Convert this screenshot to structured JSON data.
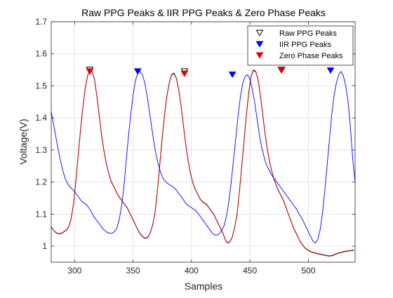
{
  "figure": {
    "background": "#ffffff"
  },
  "chart_data": {
    "type": "line",
    "title": "Raw PPG Peaks & IIR PPG Peaks & Zero Phase Peaks",
    "xlabel": "Samples",
    "ylabel": "Voltage(V)",
    "xlim": [
      280,
      540
    ],
    "ylim": [
      0.95,
      1.7
    ],
    "xticks": [
      300,
      350,
      400,
      450,
      500
    ],
    "yticks": [
      1,
      1.1,
      1.2,
      1.3,
      1.4,
      1.5,
      1.6,
      1.7
    ],
    "xtick_labels": [
      "300",
      "350",
      "400",
      "450",
      "500"
    ],
    "ytick_labels": [
      "1",
      "1.1",
      "1.2",
      "1.3",
      "1.4",
      "1.5",
      "1.6",
      "1.7"
    ],
    "grid": true,
    "legend_position": "top-right",
    "series": [
      {
        "name": "Raw PPG",
        "role": "line",
        "color": "#000000",
        "x": [
          280,
          281,
          283,
          285,
          287,
          289,
          291,
          293,
          295,
          297,
          299,
          301,
          303,
          305,
          307,
          309,
          311,
          313,
          315,
          317,
          319,
          321,
          323,
          325,
          327,
          329,
          331,
          333,
          335,
          337,
          339,
          341,
          343,
          345,
          347,
          349,
          351,
          353,
          355,
          357,
          359,
          361,
          363,
          365,
          367,
          369,
          371,
          373,
          375,
          377,
          379,
          381,
          383,
          385,
          387,
          389,
          391,
          393,
          395,
          397,
          399,
          401,
          403,
          405,
          407,
          409,
          411,
          413,
          415,
          417,
          419,
          421,
          423,
          425,
          427,
          429,
          431,
          433,
          435,
          437,
          439,
          441,
          443,
          445,
          447,
          449,
          451,
          453,
          455,
          457,
          459,
          461,
          463,
          465,
          467,
          469,
          471,
          473,
          475,
          477,
          479,
          481,
          483,
          485,
          487,
          489,
          491,
          493,
          495,
          497,
          499,
          501,
          503,
          505,
          507,
          509,
          511,
          513,
          515,
          517,
          519,
          521,
          523,
          525,
          527,
          529,
          531,
          533,
          535,
          537,
          539
        ],
        "values": [
          1.062,
          1.055,
          1.045,
          1.04,
          1.038,
          1.04,
          1.045,
          1.05,
          1.06,
          1.085,
          1.13,
          1.2,
          1.28,
          1.36,
          1.43,
          1.49,
          1.53,
          1.55,
          1.545,
          1.52,
          1.47,
          1.41,
          1.35,
          1.3,
          1.26,
          1.23,
          1.205,
          1.19,
          1.175,
          1.16,
          1.15,
          1.14,
          1.13,
          1.12,
          1.105,
          1.09,
          1.075,
          1.06,
          1.045,
          1.035,
          1.028,
          1.025,
          1.03,
          1.045,
          1.07,
          1.11,
          1.18,
          1.26,
          1.34,
          1.41,
          1.47,
          1.51,
          1.535,
          1.54,
          1.525,
          1.49,
          1.44,
          1.38,
          1.32,
          1.27,
          1.23,
          1.2,
          1.18,
          1.165,
          1.15,
          1.14,
          1.135,
          1.13,
          1.12,
          1.11,
          1.1,
          1.085,
          1.07,
          1.055,
          1.04,
          1.02,
          1.01,
          1.015,
          1.03,
          1.06,
          1.1,
          1.17,
          1.25,
          1.33,
          1.41,
          1.48,
          1.53,
          1.55,
          1.545,
          1.52,
          1.47,
          1.41,
          1.35,
          1.3,
          1.26,
          1.23,
          1.205,
          1.185,
          1.17,
          1.155,
          1.14,
          1.12,
          1.1,
          1.08,
          1.06,
          1.045,
          1.03,
          1.015,
          1.005,
          0.995,
          0.99,
          0.985,
          0.982,
          0.98,
          0.978,
          0.976,
          0.975,
          0.973,
          0.972,
          0.97,
          0.97,
          0.972,
          0.975,
          0.978,
          0.98,
          0.982,
          0.984,
          0.985,
          0.986,
          0.987,
          0.988
        ]
      },
      {
        "name": "Zero Phase",
        "role": "line",
        "color": "#cc0000",
        "x": [
          280,
          281,
          283,
          285,
          287,
          289,
          291,
          293,
          295,
          297,
          299,
          301,
          303,
          305,
          307,
          309,
          311,
          313,
          315,
          317,
          319,
          321,
          323,
          325,
          327,
          329,
          331,
          333,
          335,
          337,
          339,
          341,
          343,
          345,
          347,
          349,
          351,
          353,
          355,
          357,
          359,
          361,
          363,
          365,
          367,
          369,
          371,
          373,
          375,
          377,
          379,
          381,
          383,
          385,
          387,
          389,
          391,
          393,
          395,
          397,
          399,
          401,
          403,
          405,
          407,
          409,
          411,
          413,
          415,
          417,
          419,
          421,
          423,
          425,
          427,
          429,
          431,
          433,
          435,
          437,
          439,
          441,
          443,
          445,
          447,
          449,
          451,
          453,
          455,
          457,
          459,
          461,
          463,
          465,
          467,
          469,
          471,
          473,
          475,
          477,
          479,
          481,
          483,
          485,
          487,
          489,
          491,
          493,
          495,
          497,
          499,
          501,
          503,
          505,
          507,
          509,
          511,
          513,
          515,
          517,
          519,
          521,
          523,
          525,
          527,
          529,
          531,
          533,
          535,
          537,
          539
        ],
        "values": [
          1.061,
          1.054,
          1.046,
          1.041,
          1.039,
          1.041,
          1.046,
          1.051,
          1.061,
          1.086,
          1.131,
          1.201,
          1.281,
          1.361,
          1.431,
          1.491,
          1.531,
          1.548,
          1.544,
          1.519,
          1.469,
          1.409,
          1.349,
          1.299,
          1.259,
          1.229,
          1.204,
          1.189,
          1.174,
          1.159,
          1.149,
          1.139,
          1.129,
          1.119,
          1.104,
          1.089,
          1.074,
          1.059,
          1.044,
          1.034,
          1.027,
          1.024,
          1.029,
          1.044,
          1.069,
          1.109,
          1.179,
          1.259,
          1.339,
          1.409,
          1.469,
          1.509,
          1.534,
          1.538,
          1.524,
          1.489,
          1.439,
          1.379,
          1.319,
          1.269,
          1.229,
          1.199,
          1.179,
          1.164,
          1.149,
          1.139,
          1.134,
          1.129,
          1.119,
          1.109,
          1.099,
          1.084,
          1.069,
          1.054,
          1.039,
          1.019,
          1.009,
          1.014,
          1.029,
          1.059,
          1.099,
          1.169,
          1.249,
          1.329,
          1.409,
          1.479,
          1.529,
          1.548,
          1.544,
          1.519,
          1.469,
          1.409,
          1.349,
          1.299,
          1.259,
          1.229,
          1.204,
          1.184,
          1.169,
          1.154,
          1.139,
          1.119,
          1.099,
          1.079,
          1.059,
          1.044,
          1.029,
          1.014,
          1.004,
          0.994,
          0.989,
          0.984,
          0.981,
          0.979,
          0.977,
          0.975,
          0.974,
          0.972,
          0.971,
          0.969,
          0.969,
          0.971,
          0.974,
          0.977,
          0.979,
          0.981,
          0.983,
          0.984,
          0.985,
          0.986,
          0.987
        ]
      },
      {
        "name": "IIR PPG",
        "role": "line",
        "color": "#0000ff",
        "x": [
          280,
          282,
          284,
          286,
          288,
          290,
          292,
          294,
          296,
          298,
          300,
          302,
          304,
          306,
          308,
          310,
          312,
          314,
          316,
          318,
          320,
          322,
          324,
          326,
          328,
          330,
          332,
          334,
          336,
          338,
          340,
          342,
          344,
          346,
          348,
          350,
          352,
          354,
          356,
          358,
          360,
          362,
          364,
          366,
          368,
          370,
          372,
          374,
          376,
          378,
          380,
          382,
          384,
          386,
          388,
          390,
          392,
          394,
          396,
          398,
          400,
          402,
          404,
          406,
          408,
          410,
          412,
          414,
          416,
          418,
          420,
          422,
          424,
          426,
          428,
          430,
          432,
          434,
          436,
          438,
          440,
          442,
          444,
          446,
          448,
          450,
          452,
          454,
          456,
          458,
          460,
          462,
          464,
          466,
          468,
          470,
          472,
          474,
          476,
          478,
          480,
          482,
          484,
          486,
          488,
          490,
          492,
          494,
          496,
          498,
          500,
          502,
          504,
          506,
          508,
          510,
          512,
          514,
          516,
          518,
          520,
          522,
          524,
          526,
          528,
          530,
          532,
          534,
          536,
          538,
          540
        ],
        "values": [
          1.42,
          1.38,
          1.34,
          1.3,
          1.265,
          1.235,
          1.21,
          1.195,
          1.185,
          1.178,
          1.17,
          1.16,
          1.15,
          1.14,
          1.135,
          1.13,
          1.12,
          1.11,
          1.095,
          1.085,
          1.075,
          1.065,
          1.055,
          1.048,
          1.043,
          1.04,
          1.04,
          1.045,
          1.055,
          1.08,
          1.12,
          1.18,
          1.26,
          1.34,
          1.41,
          1.47,
          1.515,
          1.54,
          1.545,
          1.535,
          1.51,
          1.47,
          1.42,
          1.37,
          1.32,
          1.28,
          1.25,
          1.225,
          1.21,
          1.2,
          1.195,
          1.19,
          1.185,
          1.18,
          1.17,
          1.16,
          1.15,
          1.14,
          1.13,
          1.125,
          1.12,
          1.115,
          1.11,
          1.1,
          1.09,
          1.08,
          1.07,
          1.06,
          1.05,
          1.04,
          1.035,
          1.035,
          1.04,
          1.05,
          1.065,
          1.095,
          1.14,
          1.2,
          1.27,
          1.34,
          1.41,
          1.47,
          1.51,
          1.53,
          1.535,
          1.52,
          1.49,
          1.45,
          1.4,
          1.35,
          1.31,
          1.28,
          1.255,
          1.24,
          1.225,
          1.215,
          1.205,
          1.195,
          1.185,
          1.175,
          1.165,
          1.155,
          1.145,
          1.135,
          1.125,
          1.115,
          1.1,
          1.09,
          1.075,
          1.06,
          1.045,
          1.03,
          1.015,
          1.01,
          1.02,
          1.05,
          1.1,
          1.17,
          1.25,
          1.33,
          1.41,
          1.47,
          1.51,
          1.535,
          1.545,
          1.53,
          1.5,
          1.45,
          1.37,
          1.27,
          1.2
        ]
      },
      {
        "name": "Raw PPG Peaks",
        "role": "markers",
        "marker": "triangle-down-open",
        "color": "#000000",
        "x": [
          313,
          394,
          477
        ],
        "values": [
          1.55,
          1.545,
          1.55
        ]
      },
      {
        "name": "IIR PPG Peaks",
        "role": "markers",
        "marker": "triangle-down-filled",
        "color": "#0000ff",
        "x": [
          354,
          435,
          519
        ],
        "values": [
          1.545,
          1.535,
          1.548
        ]
      },
      {
        "name": "Zero Phase Peaks",
        "role": "markers",
        "marker": "triangle-down-filled",
        "color": "#dd0000",
        "x": [
          313,
          394,
          477
        ],
        "values": [
          1.545,
          1.538,
          1.548
        ]
      }
    ],
    "legend": [
      {
        "label": "Raw PPG Peaks",
        "marker": "triangle-down-open",
        "color": "#000000"
      },
      {
        "label": "IIR PPG Peaks",
        "marker": "triangle-down-filled",
        "color": "#0000ff"
      },
      {
        "label": "Zero Phase Peaks",
        "marker": "triangle-down-filled",
        "color": "#dd0000"
      }
    ]
  }
}
